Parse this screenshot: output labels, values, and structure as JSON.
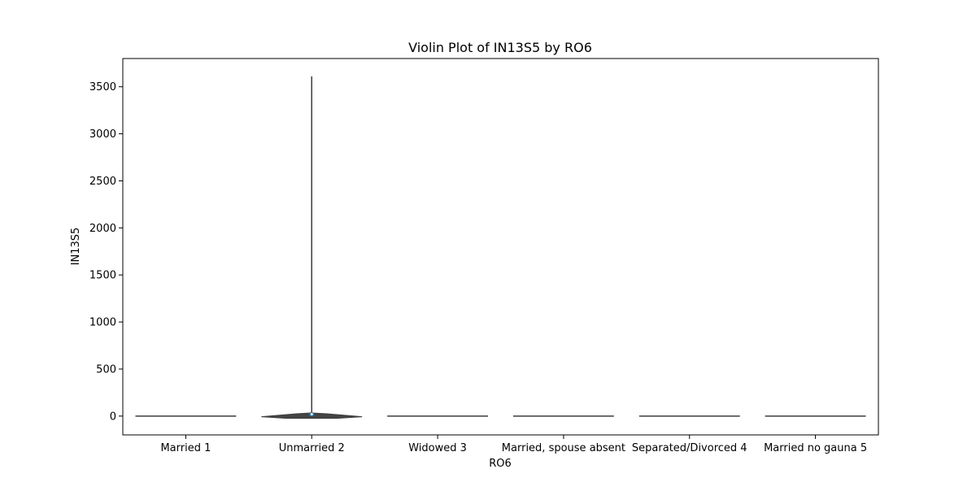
{
  "chart_data": {
    "type": "violin",
    "title": "Violin Plot of IN13S5 by RO6",
    "xlabel": "RO6",
    "ylabel": "IN13S5",
    "categories": [
      "Married 1",
      "Unmarried 2",
      "Widowed 3",
      "Married, spouse absent",
      "Separated/Divorced 4",
      "Married no gauna 5"
    ],
    "yticks": [
      0,
      500,
      1000,
      1500,
      2000,
      2500,
      3000,
      3500
    ],
    "ylim": [
      -200,
      3800
    ],
    "grid": false,
    "legend": "none",
    "violins": [
      {
        "category": "Married 1",
        "min": 0,
        "max": 0,
        "median": 0,
        "q1": 0,
        "q3": 0,
        "peak_value": 0,
        "width": 0.8
      },
      {
        "category": "Unmarried 2",
        "min": -15,
        "max": 3610,
        "median": 20,
        "q1": 0,
        "q3": 30,
        "peak_value": 25,
        "width": 0.8
      },
      {
        "category": "Widowed 3",
        "min": 0,
        "max": 0,
        "median": 0,
        "q1": 0,
        "q3": 0,
        "peak_value": 0,
        "width": 0.8
      },
      {
        "category": "Married, spouse absent",
        "min": 0,
        "max": 0,
        "median": 0,
        "q1": 0,
        "q3": 0,
        "peak_value": 0,
        "width": 0.8
      },
      {
        "category": "Separated/Divorced 4",
        "min": 0,
        "max": 0,
        "median": 0,
        "q1": 0,
        "q3": 0,
        "peak_value": 0,
        "width": 0.8
      },
      {
        "category": "Married no gauna 5",
        "min": 0,
        "max": 0,
        "median": 0,
        "q1": 0,
        "q3": 0,
        "peak_value": 0,
        "width": 0.8
      }
    ],
    "colors": {
      "violin_fill": "#1f77b4",
      "violin_edge": "#3d3d3d",
      "axis": "#000000"
    }
  }
}
